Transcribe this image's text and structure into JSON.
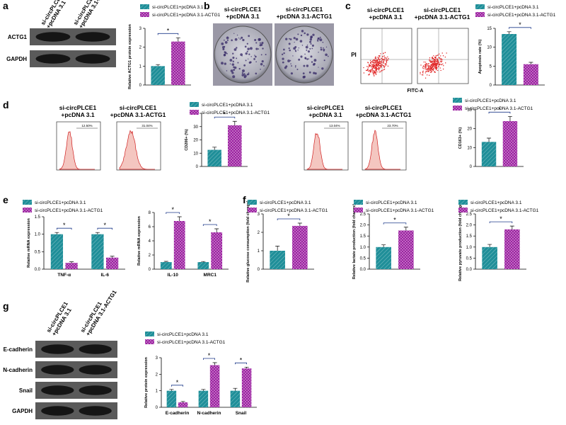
{
  "panels": {
    "a": {
      "letter": "a",
      "lanes": [
        [
          "si-circPLCE1",
          "+pcDNA 3.1"
        ],
        [
          "si-circPLCE1",
          "+pcDNA 3.1-ACTG1"
        ]
      ],
      "rows": [
        "ACTG1",
        "GAPDH"
      ]
    },
    "b": {
      "letter": "b",
      "captions": [
        [
          "si-circPLCE1",
          "+pcDNA 3.1"
        ],
        [
          "si-circPLCE1",
          "+pcDNA 3.1-ACTG1"
        ]
      ]
    },
    "c": {
      "letter": "c",
      "captions": [
        [
          "si-circPLCE1",
          "+pcDNA 3.1"
        ],
        [
          "si-circPLCE1",
          "+pcDNA 3.1-ACTG1"
        ]
      ],
      "y_label": "PI",
      "x_label": "FITC-A"
    },
    "d": {
      "letter": "d",
      "captions": [
        [
          "si-circPLCE1",
          "+pcDNA 3.1"
        ],
        [
          "si-circPLCE1",
          "+pcDNA 3.1-ACTG1"
        ],
        [
          "si-circPLCE1",
          "+pcDNA 3.1"
        ],
        [
          "si-circPLCE1",
          "+pcDNA 3.1-ACTG1"
        ]
      ],
      "gates": [
        "12.50%",
        "31.04%",
        "13.04%",
        "23.70%"
      ]
    },
    "e": {
      "letter": "e"
    },
    "f": {
      "letter": "f"
    },
    "g": {
      "letter": "g",
      "lanes": [
        [
          "si-circPLCE1",
          "+pcDNA 3.1"
        ],
        [
          "si-circPLCE1",
          "+pcDNA 3.1-ACTG1"
        ]
      ],
      "rows": [
        "E-cadherin",
        "N-cadherin",
        "Snail",
        "GAPDH"
      ]
    }
  },
  "chart_data": [
    {
      "type": "bar",
      "y_label": "Relative ACTG1 protein expression",
      "ylim": [
        0,
        3
      ],
      "yticks": [
        0,
        1,
        2,
        3
      ],
      "annotations": [
        "*"
      ],
      "series": [
        {
          "name": "si-circPLCE1+pcDNA 3.1",
          "color": "#1f8f99",
          "values": [
            1.0
          ],
          "errors": [
            0.08
          ]
        },
        {
          "name": "si-circPLCE1+pcDNA 3.1-ACTG1",
          "color": "#9b1fa0",
          "values": [
            2.3
          ],
          "errors": [
            0.2
          ]
        }
      ]
    },
    {
      "type": "bar",
      "y_label": "Apoptosis rate (%)",
      "ylim": [
        0,
        15
      ],
      "yticks": [
        0,
        5,
        10,
        15
      ],
      "annotations": [
        "*"
      ],
      "series": [
        {
          "name": "si-circPLCE1+pcDNA 3.1",
          "color": "#1f8f99",
          "values": [
            13.5
          ],
          "errors": [
            0.6
          ]
        },
        {
          "name": "si-circPLCE1+pcDNA 3.1-ACTG1",
          "color": "#9b1fa0",
          "values": [
            5.5
          ],
          "errors": [
            0.5
          ]
        }
      ]
    },
    {
      "type": "bar",
      "y_label": "CD206+ (%)",
      "ylim": [
        0,
        40
      ],
      "yticks": [
        0,
        10,
        20,
        30,
        40
      ],
      "annotations": [
        "*"
      ],
      "series": [
        {
          "name": "si-circPLCE1+pcDNA 3.1",
          "color": "#1f8f99",
          "values": [
            12.5
          ],
          "errors": [
            2
          ]
        },
        {
          "name": "si-circPLCE1+pcDNA 3.1-ACTG1",
          "color": "#9b1fa0",
          "values": [
            31
          ],
          "errors": [
            3
          ]
        }
      ]
    },
    {
      "type": "bar",
      "y_label": "CD163+ (%)",
      "ylim": [
        0,
        30
      ],
      "yticks": [
        0,
        10,
        20,
        30
      ],
      "annotations": [
        "*"
      ],
      "series": [
        {
          "name": "si-circPLCE1+pcDNA 3.1",
          "color": "#1f8f99",
          "values": [
            13
          ],
          "errors": [
            2
          ]
        },
        {
          "name": "si-circPLCE1+pcDNA 3.1-ACTG1",
          "color": "#9b1fa0",
          "values": [
            24
          ],
          "errors": [
            2.5
          ]
        }
      ]
    },
    {
      "type": "bar",
      "y_label": "Relative mRNA expression",
      "categories": [
        "TNF-α",
        "IL-6"
      ],
      "ylim": [
        0,
        1.5
      ],
      "yticks": [
        {
          "value": 0,
          "label": "0.0"
        },
        {
          "value": 0.5,
          "label": "0.5"
        },
        {
          "value": 1,
          "label": "1.0"
        },
        {
          "value": 1.5,
          "label": "1.5"
        }
      ],
      "annotations": [
        "*",
        "*"
      ],
      "series": [
        {
          "name": "si-circPLCE1+pcDNA 3.1",
          "color": "#1f8f99",
          "values": [
            1.0,
            1.0
          ],
          "errors": [
            0.05,
            0.05
          ]
        },
        {
          "name": "si-circPLCE1+pcDNA 3.1-ACTG1",
          "color": "#9b1fa0",
          "values": [
            0.18,
            0.33
          ],
          "errors": [
            0.03,
            0.04
          ]
        }
      ]
    },
    {
      "type": "bar",
      "y_label": "Relative mRNA expression",
      "categories": [
        "IL-10",
        "MRC1"
      ],
      "ylim": [
        0,
        8
      ],
      "yticks": [
        0,
        2,
        4,
        6,
        8
      ],
      "annotations": [
        "*",
        "*"
      ],
      "series": [
        {
          "color": "#1f8f99",
          "values": [
            1.0,
            1.0
          ],
          "errors": [
            0.1,
            0.08
          ]
        },
        {
          "color": "#9b1fa0",
          "values": [
            6.8,
            5.2
          ],
          "errors": [
            0.6,
            0.5
          ]
        }
      ]
    },
    {
      "type": "bar",
      "y_label": "Relative glucose consumption (fold change)",
      "ylim": [
        0,
        3
      ],
      "yticks": [
        0,
        1,
        2,
        3
      ],
      "annotations": [
        "*"
      ],
      "series": [
        {
          "name": "si-circPLCE1+pcDNA 3.1",
          "color": "#1f8f99",
          "values": [
            1.0
          ],
          "errors": [
            0.25
          ]
        },
        {
          "name": "si-circPLCE1+pcDNA 3.1-ACTG1",
          "color": "#9b1fa0",
          "values": [
            2.35
          ],
          "errors": [
            0.15
          ]
        }
      ]
    },
    {
      "type": "bar",
      "y_label": "Relative lactate production (fold change)",
      "ylim": [
        0,
        2.5
      ],
      "yticks": [
        {
          "value": 0,
          "label": "0.0"
        },
        {
          "value": 0.5,
          "label": "0.5"
        },
        {
          "value": 1,
          "label": "1.0"
        },
        {
          "value": 1.5,
          "label": "1.5"
        },
        {
          "value": 2,
          "label": "2.0"
        },
        {
          "value": 2.5,
          "label": "2.5"
        }
      ],
      "annotations": [
        "*"
      ],
      "series": [
        {
          "name": "si-circPLCE1+pcDNA 3.1",
          "color": "#1f8f99",
          "values": [
            1.0
          ],
          "errors": [
            0.1
          ]
        },
        {
          "name": "si-circPLCE1+pcDNA 3.1-ACTG1",
          "color": "#9b1fa0",
          "values": [
            1.75
          ],
          "errors": [
            0.15
          ]
        }
      ]
    },
    {
      "type": "bar",
      "y_label": "Relative pyruvate production (fold change)",
      "ylim": [
        0,
        2.5
      ],
      "yticks": [
        {
          "value": 0,
          "label": "0.0"
        },
        {
          "value": 0.5,
          "label": "0.5"
        },
        {
          "value": 1,
          "label": "1.0"
        },
        {
          "value": 1.5,
          "label": "1.5"
        },
        {
          "value": 2,
          "label": "2.0"
        },
        {
          "value": 2.5,
          "label": "2.5"
        }
      ],
      "annotations": [
        "*"
      ],
      "series": [
        {
          "name": "si-circPLCE1+pcDNA 3.1",
          "color": "#1f8f99",
          "values": [
            1.0
          ],
          "errors": [
            0.12
          ]
        },
        {
          "name": "si-circPLCE1+pcDNA 3.1-ACTG1",
          "color": "#9b1fa0",
          "values": [
            1.8
          ],
          "errors": [
            0.15
          ]
        }
      ]
    },
    {
      "type": "bar",
      "y_label": "Relative protein expression",
      "categories": [
        "E-cadherin",
        "N-cadherin",
        "Snail"
      ],
      "ylim": [
        0,
        3
      ],
      "yticks": [
        0,
        1,
        2,
        3
      ],
      "annotations": [
        "*",
        "*",
        "*"
      ],
      "series": [
        {
          "name": "si-circPLCE1+pcDNA 3.1",
          "color": "#1f8f99",
          "values": [
            1.0,
            1.0,
            1.0
          ],
          "errors": [
            0.08,
            0.08,
            0.15
          ]
        },
        {
          "name": "si-circPLCE1+pcDNA 3.1-ACTG1",
          "color": "#9b1fa0",
          "values": [
            0.3,
            2.55,
            2.35
          ],
          "errors": [
            0.05,
            0.15,
            0.08
          ]
        }
      ]
    }
  ]
}
